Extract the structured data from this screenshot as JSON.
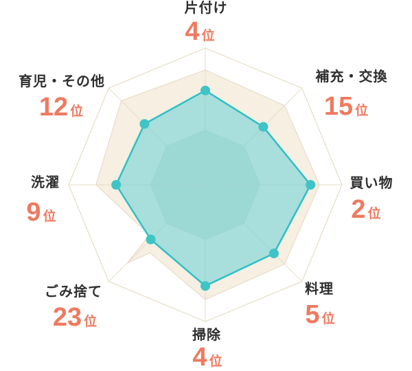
{
  "chart_data": {
    "type": "radar",
    "sides": 8,
    "axes": [
      {
        "label": "片付け",
        "rank": "4",
        "rank_unit": "位",
        "value_ratio": 0.69,
        "angle_deg": 0
      },
      {
        "label": "補充・交換",
        "rank": "15",
        "rank_unit": "位",
        "value_ratio": 0.6,
        "angle_deg": 45
      },
      {
        "label": "買い物",
        "rank": "2",
        "rank_unit": "位",
        "value_ratio": 0.77,
        "angle_deg": 90
      },
      {
        "label": "料理",
        "rank": "5",
        "rank_unit": "位",
        "value_ratio": 0.71,
        "angle_deg": 135
      },
      {
        "label": "掃除",
        "rank": "4",
        "rank_unit": "位",
        "value_ratio": 0.74,
        "angle_deg": 180
      },
      {
        "label": "ごみ捨て",
        "rank": "23",
        "rank_unit": "位",
        "value_ratio": 0.565,
        "angle_deg": 225
      },
      {
        "label": "洗濯",
        "rank": "9",
        "rank_unit": "位",
        "value_ratio": 0.653,
        "angle_deg": 270
      },
      {
        "label": "育児・その他",
        "rank": "12",
        "rank_unit": "位",
        "value_ratio": 0.63,
        "angle_deg": 315
      }
    ],
    "background_polygon": {
      "points": [
        [
          0,
          0.84
        ],
        [
          45,
          0.82
        ],
        [
          90,
          0.835
        ],
        [
          135,
          0.82
        ],
        [
          180,
          0.84
        ],
        [
          219,
          0.64
        ],
        [
          225,
          0.81
        ],
        [
          228,
          0.55
        ],
        [
          270,
          0.8
        ],
        [
          315,
          0.87
        ]
      ]
    },
    "grid": {
      "outer_ratio": 1.0,
      "inner_ratio": 0.4,
      "spokes": 8
    },
    "colors": {
      "series_fill": "rgba(104,208,213,0.55)",
      "series_stroke": "#2cc0c6",
      "dot_fill": "#3ec4c6",
      "background_fill": "#f6efe2",
      "background_stroke": "#e4d8c1",
      "grid_line": "#e6dcc6",
      "inner_fill": "#dce4d6",
      "inner_stroke": "rgba(0,0,0,0.05)",
      "label_color": "#2e2e2e",
      "rank_color": "#ee7a60"
    }
  }
}
